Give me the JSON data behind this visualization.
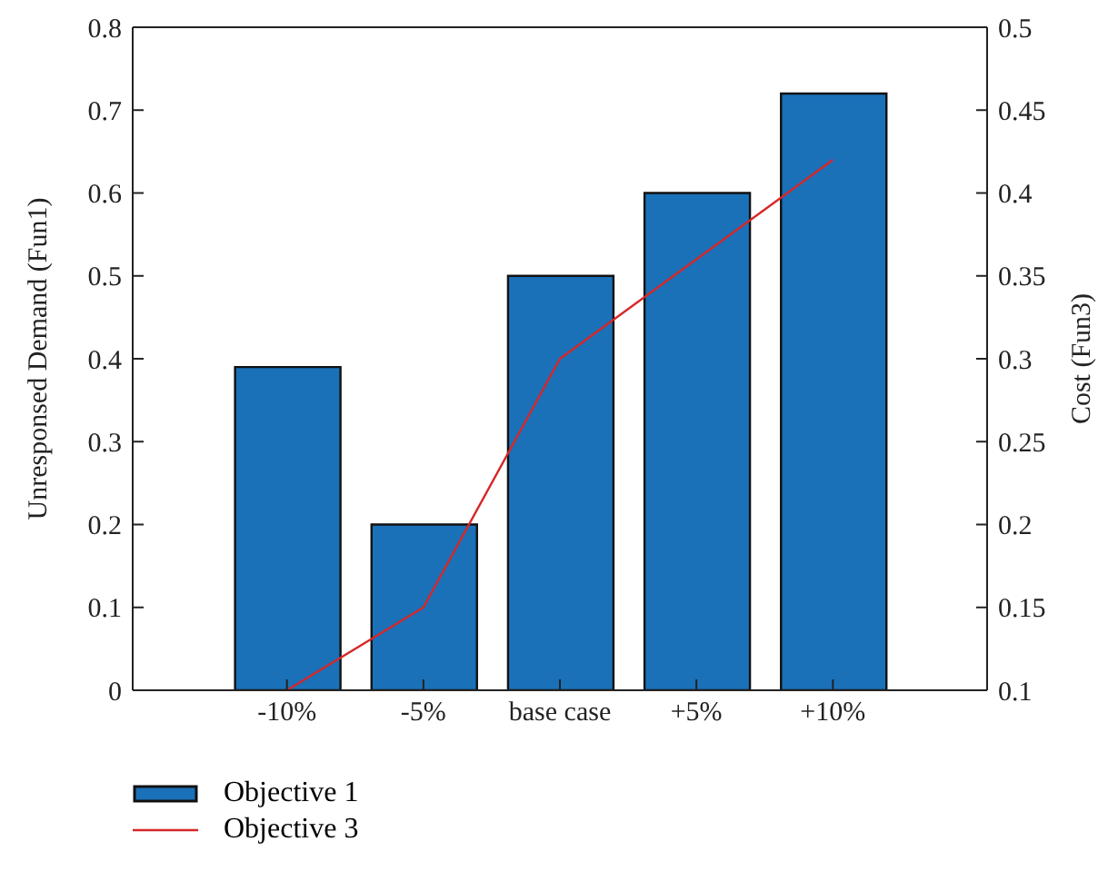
{
  "chart_data": {
    "type": "bar",
    "categories": [
      "-10%",
      "-5%",
      "base case",
      "+5%",
      "+10%"
    ],
    "ylabel": "Unresponsed Demand (Fun1)",
    "y2label": "Cost (Fun3)",
    "series": [
      {
        "name": "Objective 1",
        "color": "#1a71b8",
        "values": [
          0.39,
          0.2,
          0.5,
          0.6,
          0.72
        ]
      },
      {
        "name": "Objective 3",
        "type": "line",
        "axis": "y2",
        "color": "#d62728",
        "values": [
          0.1,
          0.15,
          0.3,
          0.36,
          0.42
        ]
      }
    ],
    "ylim": [
      0,
      0.8
    ],
    "yticks": [
      0,
      0.1,
      0.2,
      0.3,
      0.4,
      0.5,
      0.6,
      0.7,
      0.8
    ],
    "y2lim": [
      0.1,
      0.5
    ],
    "y2ticks": [
      0.1,
      0.15,
      0.2,
      0.25,
      0.3,
      0.35,
      0.4,
      0.45,
      0.5
    ],
    "legend": "bottom left",
    "grid": false
  }
}
